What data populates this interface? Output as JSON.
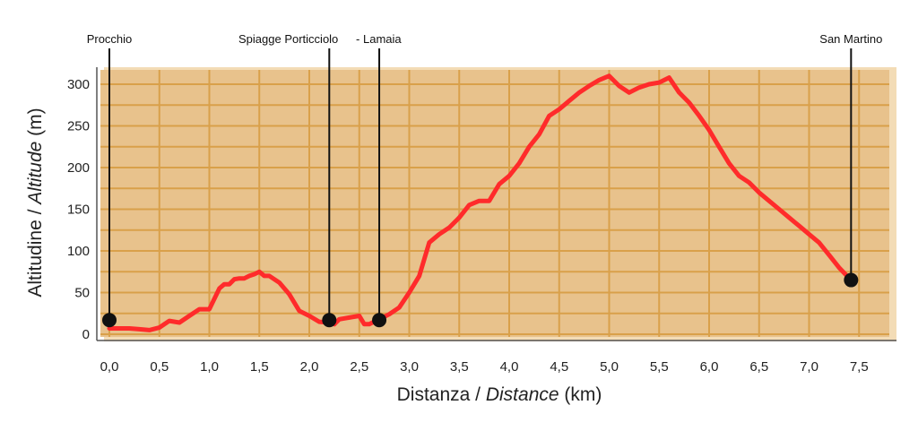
{
  "chart_data": {
    "type": "line",
    "xlabel": {
      "main": "Distanza / ",
      "italic": "Distance",
      "unit": " (km)"
    },
    "ylabel": {
      "main": "Altitudine / ",
      "italic": "Altitude",
      "unit": " (m)"
    },
    "xlim": [
      0,
      7.75
    ],
    "ylim": [
      0,
      320
    ],
    "x_ticks": [
      0,
      0.5,
      1.0,
      1.5,
      2.0,
      2.5,
      3.0,
      3.5,
      4.0,
      4.5,
      5.0,
      5.5,
      6.0,
      6.5,
      7.0,
      7.5
    ],
    "x_tick_labels": [
      "0,0",
      "0,5",
      "1,0",
      "1,5",
      "2,0",
      "2,5",
      "3,0",
      "3,5",
      "4,0",
      "4,5",
      "5,0",
      "5,5",
      "6,0",
      "6,5",
      "7,0",
      "7,5"
    ],
    "y_ticks": [
      0,
      50,
      100,
      150,
      200,
      250,
      300
    ],
    "y_tick_labels": [
      "0",
      "50",
      "100",
      "150",
      "200",
      "250",
      "300"
    ],
    "grid": true,
    "colors": {
      "line": "#ff2b2b",
      "plot_bg": "#e8c28c",
      "grid": "#d9a04a",
      "marker": "#111111",
      "marker_line": "#111111"
    },
    "series": [
      {
        "x": [
          0.0,
          0.1,
          0.2,
          0.3,
          0.4,
          0.5,
          0.55,
          0.6,
          0.7,
          0.8,
          0.9,
          1.0,
          1.1,
          1.15,
          1.2,
          1.25,
          1.3,
          1.35,
          1.4,
          1.45,
          1.5,
          1.55,
          1.6,
          1.7,
          1.8,
          1.9,
          2.0,
          2.1,
          2.2,
          2.25,
          2.3,
          2.4,
          2.5,
          2.55,
          2.6,
          2.7,
          2.8,
          2.9,
          3.0,
          3.1,
          3.2,
          3.3,
          3.4,
          3.5,
          3.6,
          3.7,
          3.8,
          3.9,
          4.0,
          4.1,
          4.2,
          4.3,
          4.4,
          4.5,
          4.6,
          4.7,
          4.8,
          4.9,
          5.0,
          5.1,
          5.2,
          5.3,
          5.4,
          5.5,
          5.6,
          5.7,
          5.8,
          5.9,
          6.0,
          6.1,
          6.2,
          6.3,
          6.4,
          6.5,
          6.6,
          6.7,
          6.8,
          6.9,
          7.0,
          7.1,
          7.2,
          7.3,
          7.42
        ],
        "y": [
          7,
          7,
          7,
          6,
          5,
          8,
          12,
          16,
          14,
          22,
          30,
          30,
          55,
          60,
          60,
          66,
          67,
          67,
          70,
          72,
          75,
          70,
          70,
          62,
          48,
          28,
          22,
          15,
          14,
          12,
          18,
          20,
          22,
          12,
          12,
          18,
          24,
          32,
          50,
          70,
          110,
          120,
          128,
          140,
          155,
          160,
          160,
          180,
          190,
          205,
          225,
          240,
          262,
          270,
          280,
          290,
          298,
          305,
          310,
          298,
          290,
          296,
          300,
          302,
          308,
          290,
          278,
          262,
          245,
          225,
          205,
          190,
          182,
          170,
          160,
          150,
          140,
          130,
          120,
          110,
          95,
          80,
          65
        ]
      }
    ],
    "markers": [
      {
        "label": "Procchio",
        "x": 0.0,
        "y": 17
      },
      {
        "label": "Spiagge Porticciolo",
        "x": 2.2,
        "y": 17
      },
      {
        "label": "- Lamaia",
        "x": 2.7,
        "y": 17
      },
      {
        "label": "San Martino",
        "x": 7.42,
        "y": 65
      }
    ]
  }
}
